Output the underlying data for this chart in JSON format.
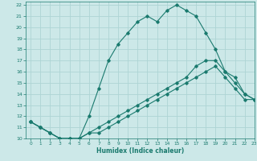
{
  "xlabel": "Humidex (Indice chaleur)",
  "xlim": [
    -0.5,
    23
  ],
  "ylim": [
    10,
    22.3
  ],
  "yticks": [
    10,
    11,
    12,
    13,
    14,
    15,
    16,
    17,
    18,
    19,
    20,
    21,
    22
  ],
  "xticks": [
    0,
    1,
    2,
    3,
    4,
    5,
    6,
    7,
    8,
    9,
    10,
    11,
    12,
    13,
    14,
    15,
    16,
    17,
    18,
    19,
    20,
    21,
    22,
    23
  ],
  "bg_color": "#cce8e8",
  "grid_color": "#aed4d4",
  "line_color": "#1a7a6e",
  "lines": [
    {
      "x": [
        0,
        1,
        2,
        3,
        4,
        5,
        6,
        7,
        8,
        9,
        10,
        11,
        12,
        13,
        14,
        15,
        16,
        17,
        18,
        19,
        20,
        21,
        22,
        23
      ],
      "y": [
        11.5,
        11.0,
        10.5,
        10.0,
        10.0,
        10.0,
        12.0,
        14.5,
        17.0,
        18.5,
        19.5,
        20.5,
        21.0,
        20.5,
        21.5,
        22.0,
        21.5,
        21.0,
        19.5,
        18.0,
        16.0,
        15.0,
        14.0,
        13.5
      ]
    },
    {
      "x": [
        0,
        1,
        2,
        3,
        4,
        5,
        6,
        7,
        8,
        9,
        10,
        11,
        12,
        13,
        14,
        15,
        16,
        17,
        18,
        19,
        20,
        21,
        22,
        23
      ],
      "y": [
        11.5,
        11.0,
        10.5,
        10.0,
        10.0,
        10.0,
        10.5,
        11.0,
        11.5,
        12.0,
        12.5,
        13.0,
        13.5,
        14.0,
        14.5,
        15.0,
        15.5,
        16.5,
        17.0,
        17.0,
        16.0,
        15.5,
        14.0,
        13.5
      ]
    },
    {
      "x": [
        0,
        1,
        2,
        3,
        4,
        5,
        6,
        7,
        8,
        9,
        10,
        11,
        12,
        13,
        14,
        15,
        16,
        17,
        18,
        19,
        20,
        21,
        22,
        23
      ],
      "y": [
        11.5,
        11.0,
        10.5,
        10.0,
        10.0,
        10.0,
        10.5,
        10.5,
        11.0,
        11.5,
        12.0,
        12.5,
        13.0,
        13.5,
        14.0,
        14.5,
        15.0,
        15.5,
        16.0,
        16.5,
        15.5,
        14.5,
        13.5,
        13.5
      ]
    }
  ]
}
